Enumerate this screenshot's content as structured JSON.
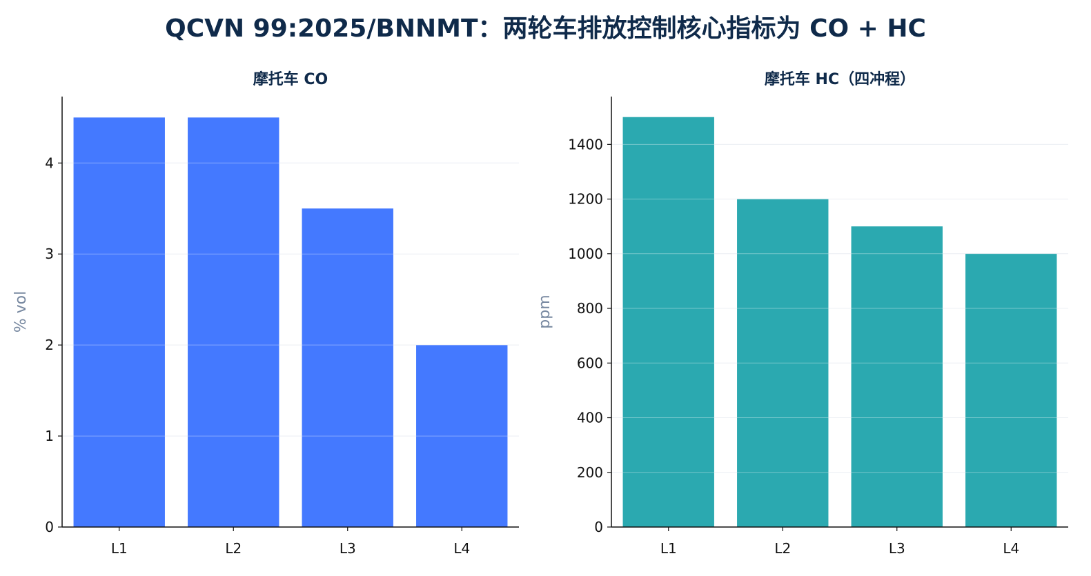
{
  "title": "QCVN 99:2025/BNNMT：两轮车排放控制核心指标为 CO + HC",
  "chart_data": [
    {
      "type": "bar",
      "title": "摩托车 CO",
      "categories": [
        "L1",
        "L2",
        "L3",
        "L4"
      ],
      "values": [
        4.5,
        4.5,
        3.5,
        2.0
      ],
      "ylabel": "% vol",
      "ylim": [
        0,
        4.73
      ],
      "yticks": [
        0,
        1,
        2,
        3,
        4
      ],
      "color": "#4479ff",
      "grid": true
    },
    {
      "type": "bar",
      "title": "摩托车 HC（四冲程）",
      "categories": [
        "L1",
        "L2",
        "L3",
        "L4"
      ],
      "values": [
        1500,
        1200,
        1100,
        1000
      ],
      "ylabel": "ppm",
      "ylim": [
        0,
        1575
      ],
      "yticks": [
        0,
        200,
        400,
        600,
        800,
        1000,
        1200,
        1400
      ],
      "color": "#2ba9b0",
      "grid": true
    }
  ]
}
